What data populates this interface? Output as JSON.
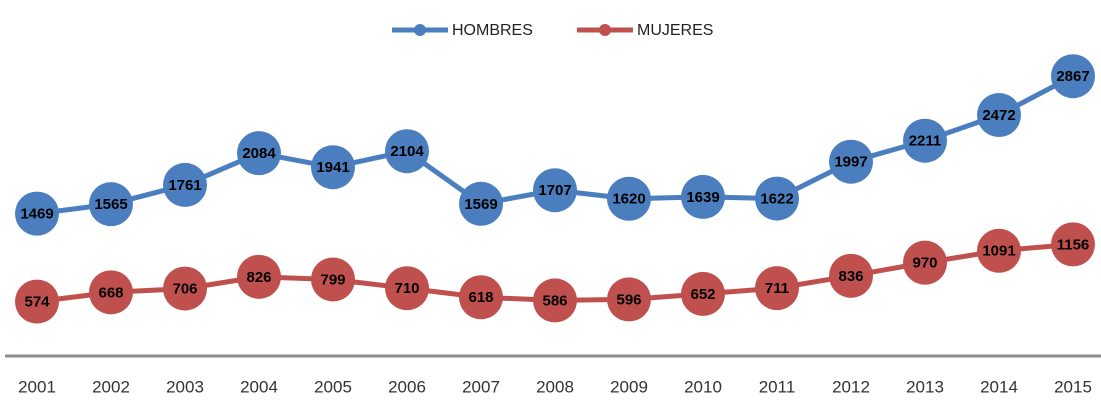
{
  "chart_data": {
    "type": "line",
    "categories": [
      "2001",
      "2002",
      "2003",
      "2004",
      "2005",
      "2006",
      "2007",
      "2008",
      "2009",
      "2010",
      "2011",
      "2012",
      "2013",
      "2014",
      "2015"
    ],
    "series": [
      {
        "name": "HOMBRES",
        "color": "#4a7ebf",
        "values": [
          1469,
          1565,
          1761,
          2084,
          1941,
          2104,
          1569,
          1707,
          1620,
          1639,
          1622,
          1997,
          2211,
          2472,
          2867
        ]
      },
      {
        "name": "MUJERES",
        "color": "#c0504d",
        "values": [
          574,
          668,
          706,
          826,
          799,
          710,
          618,
          586,
          596,
          652,
          711,
          836,
          970,
          1091,
          1156
        ]
      }
    ],
    "ylim": [
      0,
      3500
    ],
    "legend": "top"
  }
}
